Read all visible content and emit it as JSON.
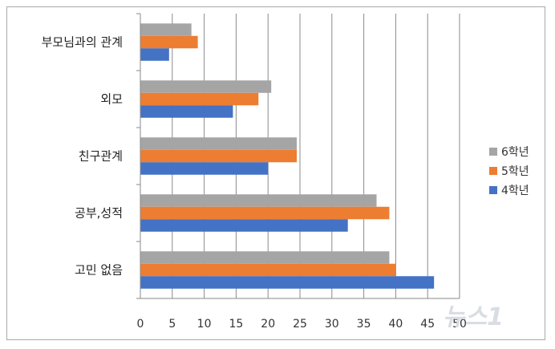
{
  "chart_data": {
    "type": "bar",
    "orientation": "horizontal",
    "categories": [
      "부모님과의 관계",
      "외모",
      "친구관계",
      "공부,성적",
      "고민 없음"
    ],
    "series": [
      {
        "name": "6학년",
        "color": "#a5a5a5",
        "values": [
          8,
          20.5,
          24.5,
          37,
          39
        ]
      },
      {
        "name": "5학년",
        "color": "#ed7d31",
        "values": [
          9,
          18.5,
          24.5,
          39,
          40
        ]
      },
      {
        "name": "4학년",
        "color": "#4472c4",
        "values": [
          4.5,
          14.5,
          20,
          32.5,
          46
        ]
      }
    ],
    "xlim": [
      0,
      50
    ],
    "x_ticks": [
      "0",
      "5",
      "10",
      "15",
      "20",
      "25",
      "30",
      "35",
      "40",
      "45",
      "50"
    ],
    "grid": true,
    "legend_position": "right"
  },
  "watermark": {
    "text": "뉴스1"
  }
}
